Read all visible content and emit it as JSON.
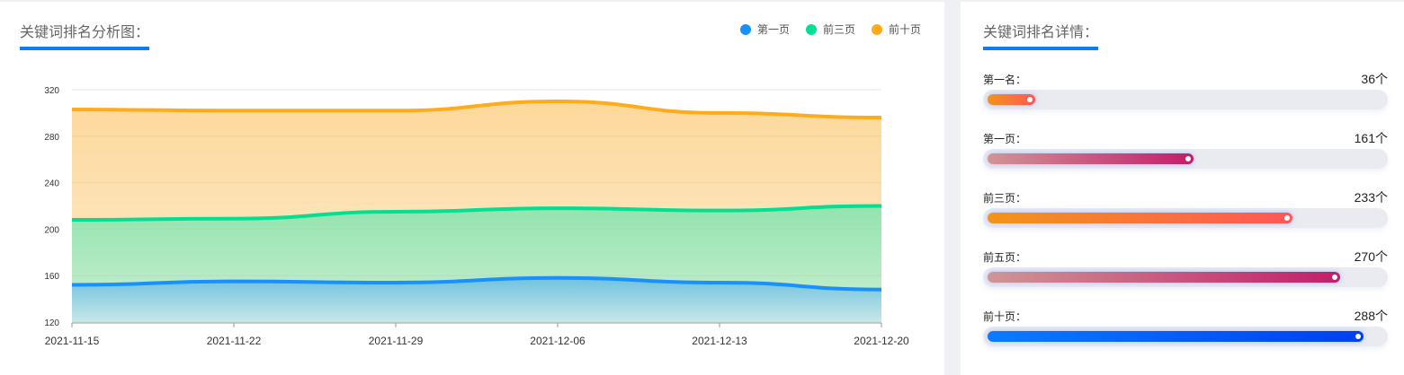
{
  "chart_data": {
    "type": "area",
    "title": "关键词排名分析图：",
    "categories": [
      "2021-11-15",
      "2021-11-22",
      "2021-11-29",
      "2021-12-06",
      "2021-12-13",
      "2021-12-20"
    ],
    "yticks": [
      "120",
      "160",
      "200",
      "240",
      "280",
      "320"
    ],
    "ylim": [
      120,
      320
    ],
    "grid": true,
    "legend_position": "top-right",
    "series": [
      {
        "name": "第一页",
        "color": "#1890ff",
        "values": [
          152,
          155,
          154,
          158,
          154,
          148
        ]
      },
      {
        "name": "前三页",
        "color": "#00e092",
        "values": [
          208,
          209,
          215,
          218,
          216,
          220
        ]
      },
      {
        "name": "前十页",
        "color": "#ffab1a",
        "values": [
          303,
          302,
          302,
          310,
          300,
          296
        ]
      }
    ]
  },
  "details": {
    "title": "关键词排名详情：",
    "rows": [
      {
        "label": "第一名：",
        "value": "36个",
        "fraction": 0.12,
        "from": "#f2941a",
        "to": "#ff5757"
      },
      {
        "label": "第一页：",
        "value": "161个",
        "fraction": 0.52,
        "from": "#d09595",
        "to": "#c21d6a"
      },
      {
        "label": "前三页：",
        "value": "233个",
        "fraction": 0.77,
        "from": "#f2941a",
        "to": "#ff5757"
      },
      {
        "label": "前五页：",
        "value": "270个",
        "fraction": 0.89,
        "from": "#d09595",
        "to": "#c21d6a"
      },
      {
        "label": "前十页：",
        "value": "288个",
        "fraction": 0.95,
        "from": "#0a7bff",
        "to": "#0040f0"
      }
    ]
  }
}
